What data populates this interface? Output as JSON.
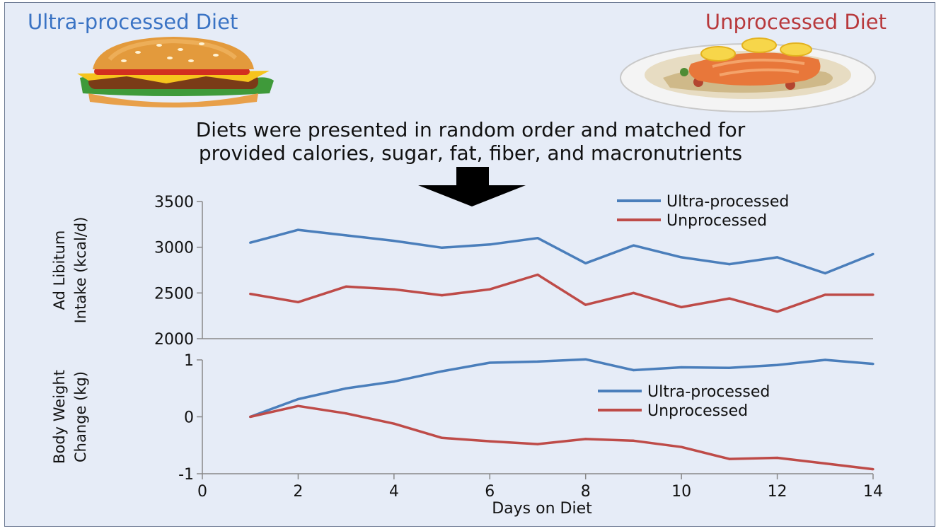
{
  "header": {
    "left_title": "Ultra-processed Diet",
    "right_title": "Unprocessed Diet",
    "left_icon": "burger-icon",
    "right_icon": "salmon-plate-icon"
  },
  "note": {
    "line1": "Diets were presented in random order and matched for",
    "line2": "provided calories, sugar, fat, fiber, and macronutrients",
    "arrow_icon": "down-arrow-icon"
  },
  "colors": {
    "ultra": "#4a7ebb",
    "unprocessed": "#be4b48",
    "background": "#e6ecf7",
    "axis": "#888888"
  },
  "chart_data": [
    {
      "type": "line",
      "ylabel": "Ad Libitum Intake (kcal/d)",
      "ylabel_lines": [
        "Ad Libitum",
        "Intake (kcal/d)"
      ],
      "xlabel": "",
      "ylim": [
        2000,
        3500
      ],
      "yticks": [
        "3500",
        "3000",
        "2500",
        "2000"
      ],
      "legend_position": "top-right",
      "grid": false,
      "x": [
        1,
        2,
        3,
        4,
        5,
        6,
        7,
        8,
        9,
        10,
        11,
        12,
        13,
        14
      ],
      "series": [
        {
          "name": "Ultra-processed",
          "color": "#4a7ebb",
          "values": [
            3050,
            3190,
            3130,
            3070,
            2995,
            3030,
            3100,
            2825,
            3020,
            2890,
            2815,
            2890,
            2715,
            2925
          ]
        },
        {
          "name": "Unprocessed",
          "color": "#be4b48",
          "values": [
            2490,
            2400,
            2570,
            2540,
            2475,
            2540,
            2700,
            2370,
            2500,
            2345,
            2440,
            2295,
            2480,
            2480
          ]
        }
      ]
    },
    {
      "type": "line",
      "ylabel": "Body Weight Change (kg)",
      "ylabel_lines": [
        "Body Weight",
        "Change (kg)"
      ],
      "xlabel": "Days on Diet",
      "xlim": [
        0,
        14
      ],
      "xticks": [
        "0",
        "2",
        "4",
        "6",
        "8",
        "10",
        "12",
        "14"
      ],
      "ylim": [
        -1,
        1
      ],
      "yticks": [
        "1",
        "0",
        "-1"
      ],
      "legend_position": "center-right",
      "grid": false,
      "x": [
        1,
        2,
        3,
        4,
        5,
        6,
        7,
        8,
        9,
        10,
        11,
        12,
        13,
        14
      ],
      "series": [
        {
          "name": "Ultra-processed",
          "color": "#4a7ebb",
          "values": [
            0.0,
            0.31,
            0.5,
            0.62,
            0.8,
            0.95,
            0.97,
            1.01,
            0.82,
            0.87,
            0.86,
            0.91,
            1.0,
            0.93
          ]
        },
        {
          "name": "Unprocessed",
          "color": "#be4b48",
          "values": [
            0.0,
            0.19,
            0.06,
            -0.12,
            -0.37,
            -0.43,
            -0.48,
            -0.39,
            -0.42,
            -0.53,
            -0.74,
            -0.72,
            -0.82,
            -0.92
          ]
        }
      ]
    }
  ]
}
